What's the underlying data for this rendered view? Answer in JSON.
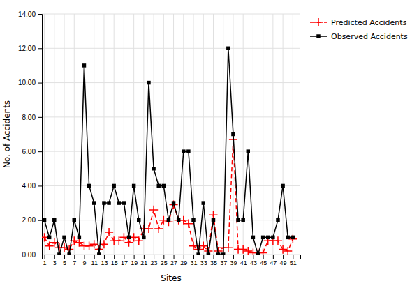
{
  "chart_data": {
    "type": "line",
    "xlabel": "Sites",
    "ylabel": "No. of Accidents",
    "x": [
      1,
      2,
      3,
      4,
      5,
      6,
      7,
      8,
      9,
      10,
      11,
      12,
      13,
      14,
      15,
      16,
      17,
      18,
      19,
      20,
      21,
      22,
      23,
      24,
      25,
      26,
      27,
      28,
      29,
      30,
      31,
      32,
      33,
      34,
      35,
      36,
      37,
      38,
      39,
      40,
      41,
      42,
      43,
      44,
      45,
      46,
      47,
      48,
      49,
      50,
      51
    ],
    "series": [
      {
        "name": "Predicted Accidents",
        "color": "#ff0000",
        "line_style": "dashed",
        "marker": "plus",
        "values": [
          1.0,
          0.5,
          0.7,
          0.4,
          0.4,
          0.3,
          0.8,
          0.7,
          0.5,
          0.5,
          0.6,
          0.3,
          0.6,
          1.3,
          0.8,
          0.8,
          1.0,
          0.7,
          1.0,
          0.8,
          1.5,
          1.5,
          2.6,
          1.5,
          2.0,
          1.9,
          2.9,
          2.0,
          2.0,
          1.8,
          0.5,
          0.3,
          0.5,
          0.2,
          2.3,
          0.2,
          0.4,
          0.4,
          6.7,
          0.3,
          0.3,
          0.2,
          0.1,
          0.1,
          0.1,
          0.8,
          0.8,
          0.8,
          0.3,
          0.2,
          0.9
        ]
      },
      {
        "name": "Observed Accidents",
        "color": "#000000",
        "line_style": "solid",
        "marker": "square",
        "values": [
          2,
          1,
          2,
          0,
          1,
          0,
          2,
          1,
          11,
          4,
          3,
          0,
          3,
          3,
          4,
          3,
          3,
          1,
          4,
          2,
          1,
          10,
          5,
          4,
          4,
          2,
          3,
          2,
          6,
          6,
          2,
          0,
          3,
          0,
          2,
          0,
          0,
          12,
          7,
          2,
          2,
          6,
          1,
          0,
          1,
          1,
          1,
          2,
          4,
          1,
          1
        ]
      }
    ],
    "xlim": [
      0.5,
      52.5
    ],
    "ylim": [
      0,
      14
    ],
    "xticks": [
      1,
      3,
      5,
      7,
      9,
      11,
      13,
      15,
      17,
      19,
      21,
      23,
      25,
      27,
      29,
      31,
      33,
      35,
      37,
      39,
      41,
      43,
      45,
      47,
      49,
      51
    ],
    "yticks": [
      {
        "value": 0,
        "label": "0.00"
      },
      {
        "value": 2,
        "label": "2.00"
      },
      {
        "value": 4,
        "label": "4.00"
      },
      {
        "value": 6,
        "label": "6.00"
      },
      {
        "value": 8,
        "label": "8.00"
      },
      {
        "value": 10,
        "label": "10.00"
      },
      {
        "value": 12,
        "label": "12.00"
      },
      {
        "value": 14,
        "label": "14.00"
      }
    ],
    "grid": true,
    "legend": "upper right"
  }
}
